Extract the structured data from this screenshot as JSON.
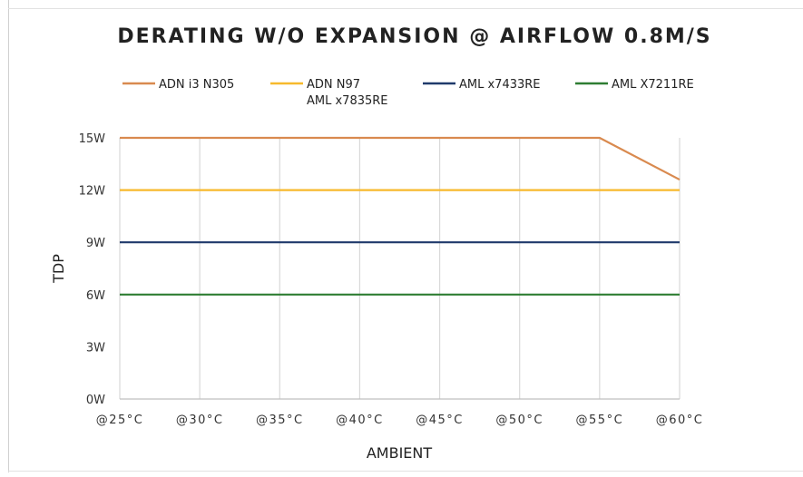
{
  "chart_data": {
    "type": "line",
    "title": "DERATING W/O EXPANSION @ AIRFLOW 0.8M/S",
    "xlabel": "AMBIENT",
    "ylabel": "TDP",
    "categories": [
      "@25°C",
      "@30°C",
      "@35°C",
      "@40°C",
      "@45°C",
      "@50°C",
      "@55°C",
      "@60°C"
    ],
    "y_ticks": [
      "0W",
      "3W",
      "6W",
      "9W",
      "12W",
      "15W"
    ],
    "ylim": [
      0,
      15
    ],
    "grid": "vertical",
    "legend_position": "top",
    "series": [
      {
        "name": "ADN i3 N305",
        "color": "#d98a4f",
        "values": [
          15,
          15,
          15,
          15,
          15,
          15,
          15,
          12.6
        ]
      },
      {
        "name": "ADN N97",
        "name_line2": "AML x7835RE",
        "color": "#f7b92c",
        "values": [
          12,
          12,
          12,
          12,
          12,
          12,
          12,
          12
        ]
      },
      {
        "name": "AML x7433RE",
        "color": "#1f3a6b",
        "values": [
          9,
          9,
          9,
          9,
          9,
          9,
          9,
          9
        ]
      },
      {
        "name": "AML X7211RE",
        "color": "#2e7d32",
        "values": [
          6,
          6,
          6,
          6,
          6,
          6,
          6,
          6
        ]
      }
    ]
  }
}
